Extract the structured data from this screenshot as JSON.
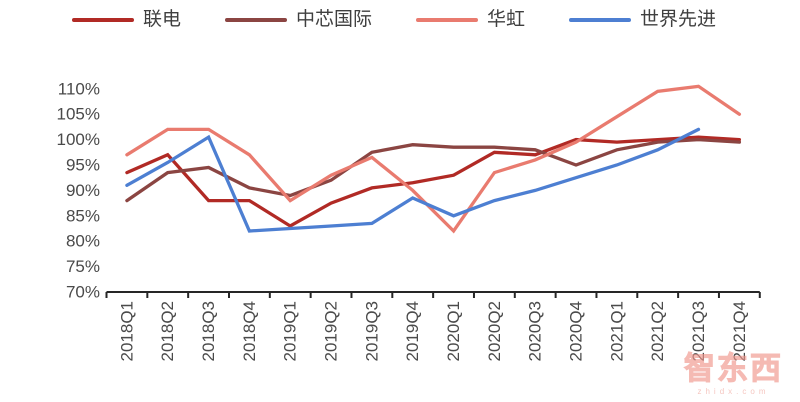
{
  "chart_data": {
    "type": "line",
    "title": "",
    "legend_position": "top",
    "grid": false,
    "categories": [
      "2018Q1",
      "2018Q2",
      "2018Q3",
      "2018Q4",
      "2019Q1",
      "2019Q2",
      "2019Q3",
      "2019Q4",
      "2020Q1",
      "2020Q2",
      "2020Q3",
      "2020Q4",
      "2021Q1",
      "2021Q2",
      "2021Q3",
      "2021Q4"
    ],
    "y_axis": {
      "min": 70,
      "max": 110,
      "step": 5,
      "unit": "%",
      "labels": [
        "110%",
        "105%",
        "100%",
        "95%",
        "90%",
        "85%",
        "80%",
        "75%",
        "70%"
      ]
    },
    "series": [
      {
        "id": "umc",
        "name": "联电",
        "color": "#b12a25",
        "values": [
          93.5,
          97,
          88,
          88,
          83,
          87.5,
          90.5,
          91.5,
          93,
          97.5,
          97,
          100,
          99.5,
          100,
          100.5,
          100
        ]
      },
      {
        "id": "smic",
        "name": "中芯国际",
        "color": "#8b4542",
        "values": [
          88,
          93.5,
          94.5,
          90.5,
          89,
          92,
          97.5,
          99,
          98.5,
          98.5,
          98,
          95,
          98,
          99.5,
          100,
          99.5
        ]
      },
      {
        "id": "huahong",
        "name": "华虹",
        "color": "#e97b6f",
        "values": [
          97,
          102,
          102,
          97,
          88,
          93,
          96.5,
          90,
          82,
          93.5,
          96,
          99.5,
          104.5,
          109.5,
          110.5,
          105
        ]
      },
      {
        "id": "vis",
        "name": "世界先进",
        "color": "#4d7fd2",
        "values": [
          91,
          95.5,
          100.5,
          82,
          82.5,
          83,
          83.5,
          88.5,
          85,
          88,
          90,
          92.5,
          95,
          98,
          102,
          null
        ]
      }
    ],
    "axis_color": "#262626",
    "label_color": "#4a4a4a"
  },
  "watermark": {
    "logo_text": "智东西",
    "sub_text": "zhidx.com"
  }
}
